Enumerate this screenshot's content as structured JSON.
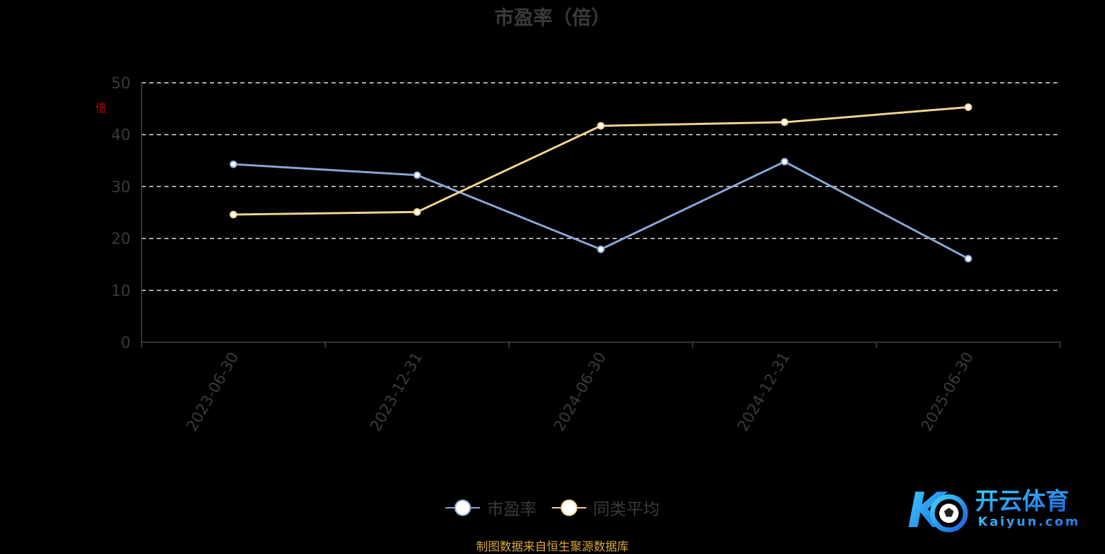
{
  "chart_data": {
    "type": "line",
    "title": "市盈率（倍）",
    "ylabel": "倍",
    "ylim": [
      0,
      50
    ],
    "yticks": [
      0,
      10,
      20,
      30,
      40,
      50
    ],
    "categories": [
      "2023-06-30",
      "2023-12-31",
      "2024-06-30",
      "2024-12-31",
      "2025-06-30"
    ],
    "grid": "dashed horizontal",
    "legend_position": "bottom-center",
    "series": [
      {
        "name": "市盈率",
        "color": "#8aa6d8",
        "values": [
          34.3,
          32.2,
          17.9,
          34.8,
          16.1
        ]
      },
      {
        "name": "同类平均",
        "color": "#f5d48f",
        "values": [
          24.6,
          25.1,
          41.7,
          42.4,
          45.3
        ]
      }
    ]
  },
  "source_note": "制图数据来自恒生聚源数据库",
  "logo": {
    "brand": "开云体育",
    "url_text": "Kaiyun.com"
  }
}
